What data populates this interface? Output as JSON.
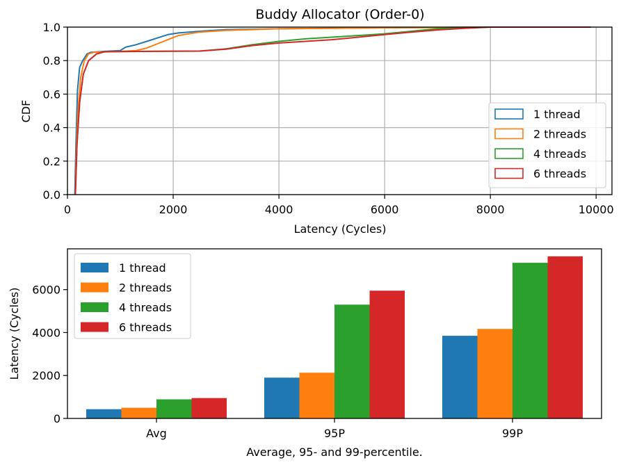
{
  "colors": {
    "s1": "#1f77b4",
    "s2": "#ff7f0e",
    "s3": "#2ca02c",
    "s4": "#d62728",
    "grid": "#b0b0b0"
  },
  "chart_data": [
    {
      "type": "line",
      "title": "Buddy Allocator (Order-0)",
      "xlabel": "Latency (Cycles)",
      "ylabel": "CDF",
      "xlim": [
        0,
        10300
      ],
      "ylim": [
        0,
        1.0
      ],
      "xticks": [
        0,
        2000,
        4000,
        6000,
        8000,
        10000
      ],
      "xtick_labels": [
        "0",
        "2000",
        "4000",
        "6000",
        "8000",
        "10000"
      ],
      "yticks": [
        0,
        0.2,
        0.4,
        0.6,
        0.8,
        1.0
      ],
      "ytick_labels": [
        "0.0",
        "0.2",
        "0.4",
        "0.6",
        "0.8",
        "1.0"
      ],
      "grid": true,
      "legend": "lower-right",
      "series": [
        {
          "name": "1 thread",
          "color": "#1f77b4",
          "points": [
            [
              140,
              0
            ],
            [
              160,
              0.3
            ],
            [
              190,
              0.62
            ],
            [
              230,
              0.76
            ],
            [
              290,
              0.8
            ],
            [
              370,
              0.84
            ],
            [
              450,
              0.85
            ],
            [
              700,
              0.855
            ],
            [
              1000,
              0.86
            ],
            [
              1100,
              0.88
            ],
            [
              1300,
              0.895
            ],
            [
              1500,
              0.915
            ],
            [
              1700,
              0.935
            ],
            [
              1900,
              0.955
            ],
            [
              2100,
              0.965
            ],
            [
              2500,
              0.975
            ],
            [
              3000,
              0.985
            ],
            [
              4000,
              0.99
            ],
            [
              6000,
              0.996
            ],
            [
              8000,
              1.0
            ],
            [
              9900,
              1.0
            ]
          ]
        },
        {
          "name": "2 threads",
          "color": "#ff7f0e",
          "points": [
            [
              150,
              0
            ],
            [
              170,
              0.28
            ],
            [
              200,
              0.5
            ],
            [
              250,
              0.7
            ],
            [
              320,
              0.8
            ],
            [
              400,
              0.84
            ],
            [
              500,
              0.85
            ],
            [
              1000,
              0.855
            ],
            [
              1300,
              0.86
            ],
            [
              1500,
              0.875
            ],
            [
              1700,
              0.9
            ],
            [
              1900,
              0.925
            ],
            [
              2100,
              0.95
            ],
            [
              2500,
              0.97
            ],
            [
              3000,
              0.98
            ],
            [
              3500,
              0.985
            ],
            [
              4000,
              0.99
            ],
            [
              6000,
              0.996
            ],
            [
              8000,
              1.0
            ],
            [
              9900,
              1.0
            ]
          ]
        },
        {
          "name": "4 threads",
          "color": "#2ca02c",
          "points": [
            [
              150,
              0
            ],
            [
              180,
              0.3
            ],
            [
              230,
              0.55
            ],
            [
              300,
              0.72
            ],
            [
              400,
              0.8
            ],
            [
              550,
              0.84
            ],
            [
              700,
              0.853
            ],
            [
              1500,
              0.855
            ],
            [
              2500,
              0.857
            ],
            [
              3000,
              0.87
            ],
            [
              3500,
              0.895
            ],
            [
              4000,
              0.915
            ],
            [
              4500,
              0.93
            ],
            [
              5000,
              0.94
            ],
            [
              5500,
              0.95
            ],
            [
              6000,
              0.96
            ],
            [
              6500,
              0.975
            ],
            [
              7000,
              0.99
            ],
            [
              7500,
              0.997
            ],
            [
              8000,
              1.0
            ],
            [
              9900,
              1.0
            ]
          ]
        },
        {
          "name": "6 threads",
          "color": "#d62728",
          "points": [
            [
              150,
              0
            ],
            [
              180,
              0.3
            ],
            [
              230,
              0.55
            ],
            [
              300,
              0.72
            ],
            [
              400,
              0.8
            ],
            [
              550,
              0.84
            ],
            [
              700,
              0.853
            ],
            [
              1500,
              0.855
            ],
            [
              2500,
              0.857
            ],
            [
              3000,
              0.868
            ],
            [
              3500,
              0.89
            ],
            [
              4000,
              0.905
            ],
            [
              4500,
              0.915
            ],
            [
              5000,
              0.925
            ],
            [
              5500,
              0.94
            ],
            [
              6000,
              0.955
            ],
            [
              6500,
              0.97
            ],
            [
              7000,
              0.983
            ],
            [
              7500,
              0.993
            ],
            [
              8000,
              1.0
            ],
            [
              9900,
              1.0
            ]
          ]
        }
      ]
    },
    {
      "type": "bar",
      "title": "",
      "xlabel": "Average, 95- and 99-percentile.",
      "ylabel": "Latency (Cycles)",
      "categories": [
        "Avg",
        "95P",
        "99P"
      ],
      "ylim": [
        0,
        7900
      ],
      "yticks": [
        0,
        2000,
        4000,
        6000
      ],
      "ytick_labels": [
        "0",
        "2000",
        "4000",
        "6000"
      ],
      "grid": false,
      "legend": "top-left",
      "series": [
        {
          "name": "1 thread",
          "color": "#1f77b4",
          "values": [
            430,
            1900,
            3850
          ]
        },
        {
          "name": "2 threads",
          "color": "#ff7f0e",
          "values": [
            500,
            2130,
            4170
          ]
        },
        {
          "name": "4 threads",
          "color": "#2ca02c",
          "values": [
            890,
            5300,
            7250
          ]
        },
        {
          "name": "6 threads",
          "color": "#d62728",
          "values": [
            950,
            5950,
            7550
          ]
        }
      ]
    }
  ]
}
